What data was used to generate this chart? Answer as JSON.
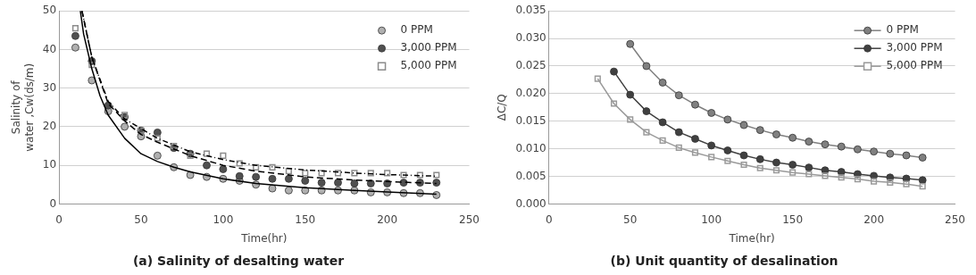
{
  "chart_data": [
    {
      "type": "scatter",
      "title": "(a) Salinity of desalting water",
      "xlabel": "Time(hr)",
      "ylabel": "Salinity of\nwater ,Cw(ds/m)",
      "xlim": [
        0,
        250
      ],
      "xticks": [
        0,
        50,
        100,
        150,
        200,
        250
      ],
      "ylim": [
        0,
        50
      ],
      "yticks": [
        0,
        10,
        20,
        30,
        40,
        50
      ],
      "grid": "y",
      "legend": "top right",
      "x": [
        10,
        20,
        30,
        40,
        50,
        60,
        70,
        80,
        90,
        100,
        110,
        120,
        130,
        140,
        150,
        160,
        170,
        180,
        190,
        200,
        210,
        220,
        230
      ],
      "series": [
        {
          "name": "0 PPM",
          "color": "#b0b0b0",
          "marker": "circle",
          "values": [
            40.5,
            32,
            24,
            20,
            17.5,
            12.5,
            9.5,
            7.5,
            7,
            6.5,
            6,
            5,
            4,
            3.5,
            3.5,
            3.5,
            3.5,
            3.5,
            3,
            3,
            2.8,
            2.8,
            2.3
          ]
        },
        {
          "name": "3,000 PPM",
          "color": "#505050",
          "marker": "circle",
          "values": [
            43.5,
            37,
            25.5,
            22.5,
            19,
            18.5,
            14.5,
            13,
            10,
            9,
            7.2,
            7,
            6.5,
            6.5,
            6,
            5.5,
            5.5,
            5.3,
            5.3,
            5.3,
            5.5,
            5.5,
            5.5
          ]
        },
        {
          "name": "5,000 PPM",
          "color": "#8c8c8c",
          "marker": "square",
          "values": [
            45.5,
            36,
            null,
            23,
            19,
            17,
            15,
            12.5,
            13,
            12.5,
            10.5,
            9.5,
            9.5,
            8.5,
            8,
            8,
            8,
            8,
            8,
            8,
            7.5,
            7.5,
            7.5
          ]
        },
        {
          "type": "line",
          "color": "#000000",
          "line_style": "solid",
          "marker": "none",
          "x": [
            13,
            15,
            20,
            25,
            30,
            40,
            50,
            60,
            70,
            80,
            100,
            120,
            150,
            180,
            200,
            230
          ],
          "values": [
            50,
            44,
            35,
            28,
            23,
            17,
            13,
            11,
            9.5,
            8.3,
            6.5,
            5.3,
            4.2,
            3.5,
            3.1,
            2.5
          ]
        },
        {
          "type": "line",
          "color": "#000000",
          "line_style": "dashed",
          "marker": "none",
          "x": [
            14,
            20,
            30,
            40,
            50,
            60,
            80,
            100,
            120,
            150,
            180,
            200,
            230
          ],
          "values": [
            50,
            38,
            26,
            21.5,
            18,
            16,
            12.5,
            10,
            8.5,
            7,
            6.2,
            5.8,
            5.3
          ]
        },
        {
          "type": "line",
          "color": "#000000",
          "line_style": "dotted",
          "marker": "none",
          "x": [
            14,
            20,
            30,
            40,
            60,
            80,
            100,
            120,
            150,
            180,
            200,
            230
          ],
          "values": [
            50,
            38,
            26.5,
            22,
            17,
            13.5,
            11.5,
            10,
            8.8,
            8,
            7.6,
            7.2
          ]
        }
      ]
    },
    {
      "type": "line",
      "title": "(b) Unit quantity of desalination",
      "xlabel": "Time(hr)",
      "ylabel": "ΔC/Q",
      "xlim": [
        0,
        250
      ],
      "xticks": [
        0,
        50,
        100,
        150,
        200,
        250
      ],
      "ylim": [
        0,
        0.035
      ],
      "yticks": [
        {
          "value": 0,
          "label": "0.000"
        },
        {
          "value": 0.005,
          "label": "0.005"
        },
        {
          "value": 0.01,
          "label": "0.010"
        },
        {
          "value": 0.015,
          "label": "0.015"
        },
        {
          "value": 0.02,
          "label": "0.020"
        },
        {
          "value": 0.025,
          "label": "0.025"
        },
        {
          "value": 0.03,
          "label": "0.030"
        },
        {
          "value": 0.035,
          "label": "0.035"
        }
      ],
      "grid": "y",
      "legend": "top right",
      "line_style": "solid",
      "series": [
        {
          "name": "0 PPM",
          "color": "#808080",
          "marker": "circle",
          "x": [
            50,
            60,
            70,
            80,
            90,
            100,
            110,
            120,
            130,
            140,
            150,
            160,
            170,
            180,
            190,
            200,
            210,
            220,
            230
          ],
          "values": [
            0.029,
            0.025,
            0.022,
            0.0197,
            0.018,
            0.0165,
            0.0153,
            0.0143,
            0.0134,
            0.0126,
            0.012,
            0.0113,
            0.0108,
            0.0104,
            0.0099,
            0.0095,
            0.0091,
            0.0088,
            0.0084
          ]
        },
        {
          "name": "3,000 PPM",
          "color": "#404040",
          "marker": "circle",
          "x": [
            40,
            50,
            60,
            70,
            80,
            90,
            100,
            110,
            120,
            130,
            140,
            150,
            160,
            170,
            180,
            190,
            200,
            210,
            220,
            230
          ],
          "values": [
            0.024,
            0.0198,
            0.0168,
            0.0148,
            0.013,
            0.0118,
            0.0106,
            0.0097,
            0.0088,
            0.0081,
            0.0075,
            0.0071,
            0.0066,
            0.0061,
            0.0058,
            0.0054,
            0.0051,
            0.0048,
            0.0046,
            0.0043
          ]
        },
        {
          "name": "5,000 PPM",
          "color": "#9a9a9a",
          "marker": "square",
          "x": [
            30,
            40,
            50,
            60,
            70,
            80,
            90,
            100,
            110,
            120,
            130,
            140,
            150,
            160,
            170,
            180,
            190,
            200,
            210,
            220,
            230
          ],
          "values": [
            0.0227,
            0.0182,
            0.0153,
            0.013,
            0.0115,
            0.0102,
            0.0093,
            0.0085,
            0.0078,
            0.0071,
            0.0065,
            0.0061,
            0.0057,
            0.0054,
            0.0051,
            0.0048,
            0.0045,
            0.0041,
            0.0039,
            0.0036,
            0.0032
          ]
        }
      ]
    }
  ]
}
